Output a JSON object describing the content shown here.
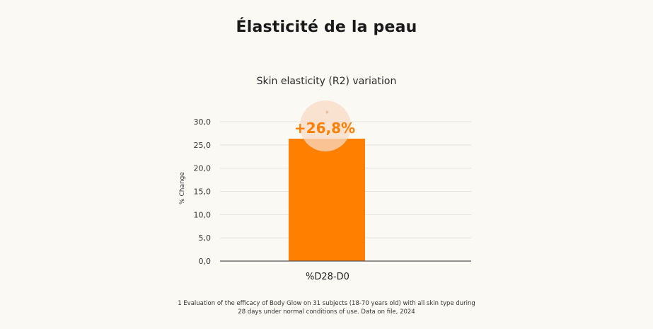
{
  "page": {
    "title": "Élasticité de la peau",
    "footnote": "1 Evaluation of the efficacy of Body Glow on 31 subjects (18-70 years old) with all skin type during 28 days under normal conditions of use. Data on file, 2024"
  },
  "chart_data": {
    "type": "bar",
    "title": "Skin elasticity (R2) variation",
    "xlabel": "",
    "ylabel": "% Change",
    "categories": [
      "%D28-D0"
    ],
    "values": [
      26.8
    ],
    "data_labels": [
      "+26,8%"
    ],
    "ylim": [
      0,
      30
    ],
    "yticks": [
      0,
      5,
      10,
      15,
      20,
      25,
      30
    ],
    "ytick_labels": [
      "0,0",
      "5,0",
      "10,0",
      "15,0",
      "20,0",
      "25,0",
      "30,0"
    ],
    "grid": true,
    "legend": "none",
    "colors": {
      "bar": "#ff7f00",
      "data_label": "#ff7f00",
      "highlight_circle": "#f8d9c4",
      "grid": "#e6e3de",
      "axis": "#555555"
    }
  }
}
